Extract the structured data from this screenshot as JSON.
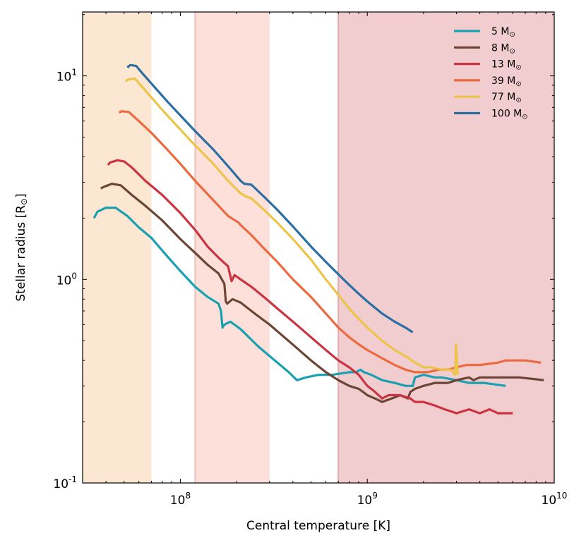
{
  "chart_data": {
    "type": "line",
    "xscale": "log",
    "yscale": "log",
    "xlabel": "Central temperature [K]",
    "ylabel_main": "Stellar radius [R",
    "ylabel_sym": "⊙",
    "ylabel_close": "]",
    "xlim": [
      30000000,
      10000000000
    ],
    "ylim": [
      0.1,
      20.6
    ],
    "x_ticks": [
      {
        "value": 100000000,
        "base": "10",
        "exp": "8"
      },
      {
        "value": 1000000000,
        "base": "10",
        "exp": "9"
      },
      {
        "value": 10000000000,
        "base": "10",
        "exp": "10"
      }
    ],
    "y_ticks": [
      {
        "value": 0.1,
        "base": "10",
        "exp": "-1"
      },
      {
        "value": 1,
        "base": "10",
        "exp": "0"
      },
      {
        "value": 10,
        "base": "10",
        "exp": "1"
      }
    ],
    "legend_position": "top-right",
    "legend_unit": "M",
    "legend_sym": "⊙",
    "bands": [
      {
        "x0": 30000000,
        "x1": 70000000,
        "color": "#fce8d2"
      },
      {
        "x0": 120000000,
        "x1": 300000000,
        "color": "#fde0da"
      },
      {
        "x0": 700000000,
        "x1": 10000000000,
        "color": "#f1cdcf"
      }
    ],
    "series": [
      {
        "name": "5",
        "color": "#1aa0b0",
        "points": [
          [
            34500000,
            2.0
          ],
          [
            36000000,
            2.15
          ],
          [
            40000000,
            2.25
          ],
          [
            45000000,
            2.25
          ],
          [
            52000000,
            2.05
          ],
          [
            60000000,
            1.8
          ],
          [
            70000000,
            1.6
          ],
          [
            85000000,
            1.3
          ],
          [
            100000000,
            1.1
          ],
          [
            120000000,
            0.92
          ],
          [
            140000000,
            0.82
          ],
          [
            160000000,
            0.76
          ],
          [
            165000000,
            0.7
          ],
          [
            168000000,
            0.58
          ],
          [
            172000000,
            0.6
          ],
          [
            185000000,
            0.62
          ],
          [
            210000000,
            0.57
          ],
          [
            260000000,
            0.47
          ],
          [
            320000000,
            0.4
          ],
          [
            380000000,
            0.35
          ],
          [
            420000000,
            0.32
          ],
          [
            470000000,
            0.33
          ],
          [
            550000000,
            0.34
          ],
          [
            650000000,
            0.34
          ],
          [
            800000000,
            0.35
          ],
          [
            870000000,
            0.35
          ],
          [
            920000000,
            0.36
          ],
          [
            960000000,
            0.35
          ],
          [
            1050000000,
            0.34
          ],
          [
            1200000000,
            0.32
          ],
          [
            1400000000,
            0.31
          ],
          [
            1600000000,
            0.3
          ],
          [
            1750000000,
            0.3
          ],
          [
            1800000000,
            0.33
          ],
          [
            2000000000,
            0.34
          ],
          [
            2300000000,
            0.33
          ],
          [
            2500000000,
            0.33
          ],
          [
            3000000000,
            0.32
          ],
          [
            3500000000,
            0.31
          ],
          [
            4200000000,
            0.31
          ],
          [
            5500000000,
            0.3
          ]
        ]
      },
      {
        "name": "8",
        "color": "#6d4535",
        "points": [
          [
            37500000,
            2.8
          ],
          [
            39000000,
            2.85
          ],
          [
            43000000,
            2.95
          ],
          [
            48000000,
            2.9
          ],
          [
            55000000,
            2.6
          ],
          [
            65000000,
            2.3
          ],
          [
            80000000,
            1.95
          ],
          [
            100000000,
            1.58
          ],
          [
            120000000,
            1.35
          ],
          [
            140000000,
            1.18
          ],
          [
            160000000,
            1.07
          ],
          [
            172000000,
            0.95
          ],
          [
            175000000,
            0.78
          ],
          [
            178000000,
            0.76
          ],
          [
            190000000,
            0.8
          ],
          [
            210000000,
            0.77
          ],
          [
            250000000,
            0.68
          ],
          [
            300000000,
            0.6
          ],
          [
            360000000,
            0.52
          ],
          [
            420000000,
            0.46
          ],
          [
            500000000,
            0.4
          ],
          [
            600000000,
            0.35
          ],
          [
            700000000,
            0.32
          ],
          [
            800000000,
            0.3
          ],
          [
            900000000,
            0.29
          ],
          [
            950000000,
            0.28
          ],
          [
            1000000000,
            0.27
          ],
          [
            1100000000,
            0.26
          ],
          [
            1200000000,
            0.25
          ],
          [
            1350000000,
            0.26
          ],
          [
            1500000000,
            0.27
          ],
          [
            1650000000,
            0.26
          ],
          [
            1700000000,
            0.28
          ],
          [
            1800000000,
            0.29
          ],
          [
            2000000000,
            0.3
          ],
          [
            2300000000,
            0.31
          ],
          [
            2700000000,
            0.31
          ],
          [
            3000000000,
            0.32
          ],
          [
            3500000000,
            0.33
          ],
          [
            3700000000,
            0.32
          ],
          [
            4000000000,
            0.33
          ],
          [
            5000000000,
            0.33
          ],
          [
            6500000000,
            0.33
          ],
          [
            8800000000,
            0.32
          ]
        ]
      },
      {
        "name": "13",
        "color": "#cc3341",
        "points": [
          [
            41000000,
            3.65
          ],
          [
            42000000,
            3.75
          ],
          [
            46000000,
            3.85
          ],
          [
            50000000,
            3.8
          ],
          [
            55000000,
            3.55
          ],
          [
            65000000,
            3.05
          ],
          [
            80000000,
            2.6
          ],
          [
            100000000,
            2.12
          ],
          [
            120000000,
            1.75
          ],
          [
            140000000,
            1.45
          ],
          [
            160000000,
            1.28
          ],
          [
            180000000,
            1.16
          ],
          [
            188000000,
            0.98
          ],
          [
            195000000,
            1.05
          ],
          [
            210000000,
            1.0
          ],
          [
            240000000,
            0.92
          ],
          [
            280000000,
            0.82
          ],
          [
            330000000,
            0.72
          ],
          [
            400000000,
            0.62
          ],
          [
            500000000,
            0.52
          ],
          [
            600000000,
            0.45
          ],
          [
            700000000,
            0.4
          ],
          [
            800000000,
            0.37
          ],
          [
            900000000,
            0.34
          ],
          [
            1000000000,
            0.3
          ],
          [
            1100000000,
            0.28
          ],
          [
            1200000000,
            0.26
          ],
          [
            1300000000,
            0.27
          ],
          [
            1500000000,
            0.27
          ],
          [
            1700000000,
            0.26
          ],
          [
            1800000000,
            0.25
          ],
          [
            2000000000,
            0.25
          ],
          [
            2300000000,
            0.24
          ],
          [
            2600000000,
            0.23
          ],
          [
            3000000000,
            0.22
          ],
          [
            3500000000,
            0.23
          ],
          [
            4000000000,
            0.22
          ],
          [
            4500000000,
            0.23
          ],
          [
            5000000000,
            0.22
          ],
          [
            6000000000,
            0.22
          ]
        ]
      },
      {
        "name": "39",
        "color": "#ec6a3f",
        "points": [
          [
            47000000,
            6.6
          ],
          [
            48500000,
            6.7
          ],
          [
            53000000,
            6.65
          ],
          [
            60000000,
            6.0
          ],
          [
            70000000,
            5.25
          ],
          [
            85000000,
            4.35
          ],
          [
            100000000,
            3.7
          ],
          [
            120000000,
            3.05
          ],
          [
            150000000,
            2.45
          ],
          [
            180000000,
            2.05
          ],
          [
            205000000,
            1.9
          ],
          [
            210000000,
            1.85
          ],
          [
            240000000,
            1.65
          ],
          [
            280000000,
            1.42
          ],
          [
            330000000,
            1.22
          ],
          [
            400000000,
            1.0
          ],
          [
            500000000,
            0.82
          ],
          [
            600000000,
            0.68
          ],
          [
            700000000,
            0.58
          ],
          [
            800000000,
            0.52
          ],
          [
            900000000,
            0.48
          ],
          [
            1000000000,
            0.45
          ],
          [
            1200000000,
            0.41
          ],
          [
            1400000000,
            0.38
          ],
          [
            1600000000,
            0.36
          ],
          [
            1800000000,
            0.35
          ],
          [
            2100000000,
            0.35
          ],
          [
            2400000000,
            0.36
          ],
          [
            2700000000,
            0.36
          ],
          [
            3000000000,
            0.37
          ],
          [
            3400000000,
            0.38
          ],
          [
            4000000000,
            0.38
          ],
          [
            5000000000,
            0.39
          ],
          [
            5500000000,
            0.4
          ],
          [
            6000000000,
            0.4
          ],
          [
            7000000000,
            0.4
          ],
          [
            8500000000,
            0.39
          ]
        ]
      },
      {
        "name": "77",
        "color": "#edc44a",
        "points": [
          [
            51000000,
            9.4
          ],
          [
            52500000,
            9.6
          ],
          [
            57000000,
            9.7
          ],
          [
            62000000,
            8.9
          ],
          [
            72000000,
            7.6
          ],
          [
            85000000,
            6.4
          ],
          [
            100000000,
            5.45
          ],
          [
            120000000,
            4.55
          ],
          [
            150000000,
            3.7
          ],
          [
            180000000,
            3.05
          ],
          [
            210000000,
            2.65
          ],
          [
            225000000,
            2.55
          ],
          [
            240000000,
            2.5
          ],
          [
            280000000,
            2.2
          ],
          [
            330000000,
            1.9
          ],
          [
            400000000,
            1.58
          ],
          [
            500000000,
            1.25
          ],
          [
            600000000,
            1.0
          ],
          [
            700000000,
            0.84
          ],
          [
            800000000,
            0.72
          ],
          [
            900000000,
            0.64
          ],
          [
            1000000000,
            0.58
          ],
          [
            1200000000,
            0.5
          ],
          [
            1400000000,
            0.45
          ],
          [
            1600000000,
            0.42
          ],
          [
            1800000000,
            0.39
          ],
          [
            2000000000,
            0.37
          ],
          [
            2200000000,
            0.37
          ],
          [
            2500000000,
            0.36
          ],
          [
            2800000000,
            0.36
          ],
          [
            2950000000,
            0.34
          ],
          [
            2980000000,
            0.48
          ],
          [
            3000000000,
            0.44
          ],
          [
            3020000000,
            0.38
          ],
          [
            3050000000,
            0.34
          ]
        ]
      },
      {
        "name": "100",
        "color": "#2a6ea3",
        "points": [
          [
            52000000,
            11.0
          ],
          [
            54000000,
            11.3
          ],
          [
            58000000,
            11.2
          ],
          [
            62000000,
            10.4
          ],
          [
            72000000,
            8.9
          ],
          [
            85000000,
            7.5
          ],
          [
            100000000,
            6.4
          ],
          [
            120000000,
            5.35
          ],
          [
            150000000,
            4.35
          ],
          [
            180000000,
            3.6
          ],
          [
            210000000,
            3.05
          ],
          [
            220000000,
            2.95
          ],
          [
            240000000,
            2.92
          ],
          [
            280000000,
            2.55
          ],
          [
            330000000,
            2.2
          ],
          [
            400000000,
            1.82
          ],
          [
            500000000,
            1.45
          ],
          [
            600000000,
            1.22
          ],
          [
            700000000,
            1.06
          ],
          [
            800000000,
            0.94
          ],
          [
            900000000,
            0.85
          ],
          [
            1000000000,
            0.78
          ],
          [
            1200000000,
            0.68
          ],
          [
            1400000000,
            0.62
          ],
          [
            1600000000,
            0.58
          ],
          [
            1750000000,
            0.55
          ]
        ]
      }
    ]
  }
}
